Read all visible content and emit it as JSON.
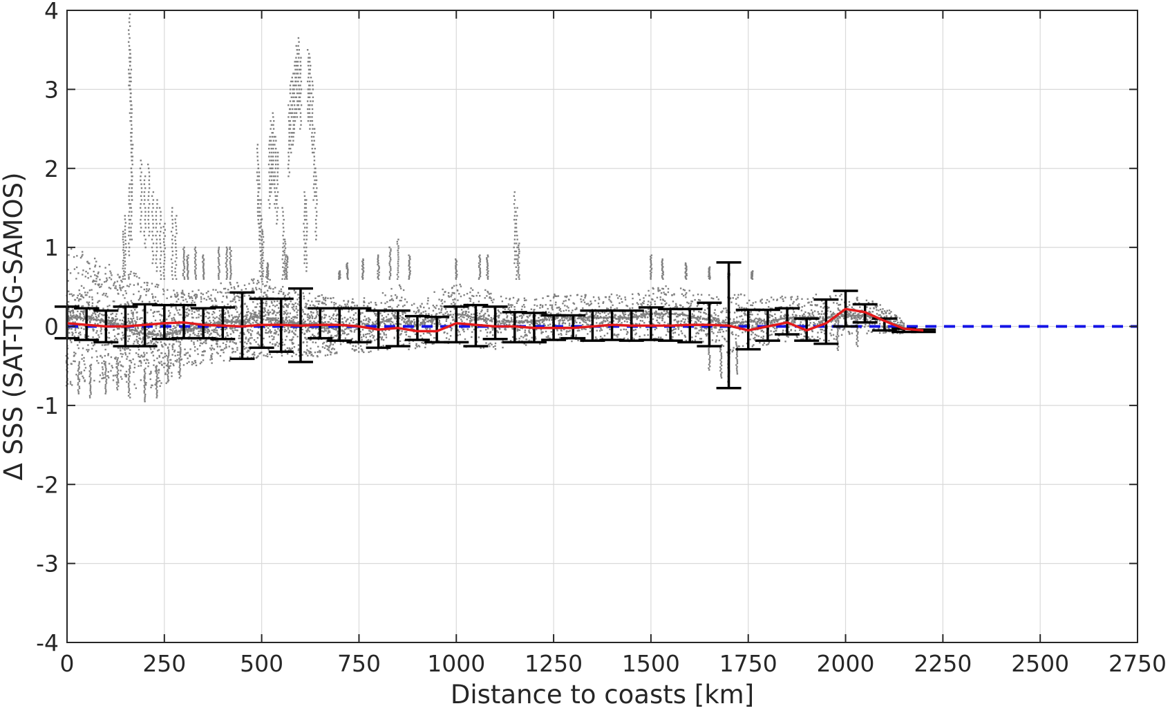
{
  "chart_data": {
    "type": "scatter",
    "title": "",
    "xlabel": "Distance to coasts [km]",
    "ylabel": "Δ SSS (SAT-TSG-SAMOS)",
    "xlim": [
      0,
      2750
    ],
    "ylim": [
      -4,
      4
    ],
    "xticks": [
      0,
      250,
      500,
      750,
      1000,
      1250,
      1500,
      1750,
      2000,
      2250,
      2500,
      2750
    ],
    "yticks": [
      -4,
      -3,
      -2,
      -1,
      0,
      1,
      2,
      3,
      4
    ],
    "grid": true,
    "colors": {
      "scatter": "#808080",
      "error_bars": "#000000",
      "mean_line": "#e31a1c",
      "zero_line": "#1414e6"
    },
    "zero_line": {
      "y": 0,
      "x_range": [
        0,
        2750
      ],
      "style": "dashed"
    },
    "scatter_envelope": {
      "x": [
        0,
        50,
        100,
        150,
        200,
        250,
        300,
        350,
        400,
        450,
        500,
        550,
        600,
        650,
        700,
        750,
        800,
        850,
        900,
        950,
        1000,
        1050,
        1100,
        1150,
        1200,
        1250,
        1300,
        1350,
        1400,
        1450,
        1500,
        1550,
        1600,
        1650,
        1700,
        1750,
        1800,
        1850,
        1900,
        1950,
        2000,
        2050,
        2100,
        2150
      ],
      "low": [
        -0.75,
        -0.7,
        -0.65,
        -0.7,
        -0.8,
        -0.7,
        -0.5,
        -0.45,
        -0.4,
        -0.4,
        -0.35,
        -0.35,
        -0.35,
        -0.35,
        -0.3,
        -0.3,
        -0.3,
        -0.25,
        -0.25,
        -0.2,
        -0.2,
        -0.25,
        -0.25,
        -0.2,
        -0.2,
        -0.15,
        -0.15,
        -0.15,
        -0.15,
        -0.15,
        -0.15,
        -0.15,
        -0.15,
        -0.2,
        -0.3,
        -0.25,
        -0.2,
        -0.15,
        -0.15,
        -0.15,
        -0.1,
        -0.05,
        -0.05,
        -0.05
      ],
      "high": [
        1.05,
        1.0,
        0.85,
        0.75,
        0.7,
        0.55,
        0.5,
        0.5,
        0.6,
        0.6,
        0.7,
        0.55,
        0.5,
        0.45,
        0.4,
        0.4,
        0.45,
        0.6,
        0.35,
        0.5,
        0.6,
        0.55,
        0.45,
        0.4,
        0.4,
        0.45,
        0.45,
        0.45,
        0.45,
        0.45,
        0.55,
        0.55,
        0.5,
        0.45,
        0.45,
        0.45,
        0.4,
        0.45,
        0.45,
        0.45,
        0.45,
        0.4,
        0.3,
        0.1
      ]
    },
    "scatter_outliers": [
      [
        160,
        3.95
      ],
      [
        163,
        3.5
      ],
      [
        165,
        3.0
      ],
      [
        167,
        2.5
      ],
      [
        165,
        2.0
      ],
      [
        160,
        1.8
      ],
      [
        150,
        1.4
      ],
      [
        145,
        1.2
      ],
      [
        190,
        2.1
      ],
      [
        200,
        1.9
      ],
      [
        210,
        2.05
      ],
      [
        220,
        1.7
      ],
      [
        230,
        1.6
      ],
      [
        240,
        1.5
      ],
      [
        250,
        1.3
      ],
      [
        270,
        1.5
      ],
      [
        280,
        1.4
      ],
      [
        300,
        1.0
      ],
      [
        310,
        0.9
      ],
      [
        330,
        1.0
      ],
      [
        350,
        0.9
      ],
      [
        390,
        1.0
      ],
      [
        410,
        1.0
      ],
      [
        420,
        1.0
      ],
      [
        490,
        2.3
      ],
      [
        493,
        2.0
      ],
      [
        497,
        1.6
      ],
      [
        500,
        1.4
      ],
      [
        503,
        1.2
      ],
      [
        515,
        0.8
      ],
      [
        520,
        2.4
      ],
      [
        525,
        2.6
      ],
      [
        530,
        2.7
      ],
      [
        535,
        2.4
      ],
      [
        540,
        2.2
      ],
      [
        555,
        1.5
      ],
      [
        560,
        1.1
      ],
      [
        565,
        0.9
      ],
      [
        570,
        2.8
      ],
      [
        575,
        3.1
      ],
      [
        580,
        3.2
      ],
      [
        585,
        3.35
      ],
      [
        590,
        3.55
      ],
      [
        595,
        3.65
      ],
      [
        600,
        3.4
      ],
      [
        610,
        1.7
      ],
      [
        615,
        1.6
      ],
      [
        620,
        3.5
      ],
      [
        625,
        3.4
      ],
      [
        630,
        3.1
      ],
      [
        635,
        2.5
      ],
      [
        640,
        2.0
      ],
      [
        700,
        0.7
      ],
      [
        720,
        0.8
      ],
      [
        760,
        0.85
      ],
      [
        800,
        0.9
      ],
      [
        830,
        1.0
      ],
      [
        850,
        1.1
      ],
      [
        880,
        0.9
      ],
      [
        1000,
        0.85
      ],
      [
        1060,
        0.9
      ],
      [
        1080,
        0.9
      ],
      [
        1150,
        1.7
      ],
      [
        1155,
        1.5
      ],
      [
        1160,
        1.05
      ],
      [
        1500,
        0.9
      ],
      [
        1530,
        0.85
      ],
      [
        1590,
        0.8
      ],
      [
        1650,
        0.75
      ],
      [
        1700,
        0.7
      ],
      [
        1760,
        0.7
      ],
      [
        0,
        -0.75
      ],
      [
        30,
        -0.85
      ],
      [
        60,
        -0.9
      ],
      [
        100,
        -0.85
      ],
      [
        130,
        -0.8
      ],
      [
        160,
        -0.9
      ],
      [
        200,
        -0.95
      ],
      [
        230,
        -0.9
      ],
      [
        260,
        -0.7
      ],
      [
        290,
        -0.65
      ],
      [
        1650,
        -0.55
      ],
      [
        1680,
        -0.65
      ],
      [
        1700,
        -0.7
      ],
      [
        1720,
        -0.6
      ],
      [
        1980,
        -0.3
      ],
      [
        2030,
        -0.25
      ]
    ],
    "series": [
      {
        "type": "errorbar",
        "x": [
          0,
          50,
          100,
          150,
          200,
          250,
          300,
          350,
          400,
          450,
          500,
          550,
          600,
          650,
          700,
          750,
          800,
          850,
          900,
          950,
          1000,
          1050,
          1100,
          1150,
          1200,
          1250,
          1300,
          1350,
          1400,
          1450,
          1500,
          1550,
          1600,
          1650,
          1700,
          1750,
          1800,
          1850,
          1900,
          1950,
          2000,
          2050,
          2100,
          2150,
          2200
        ],
        "y": [
          0.04,
          0.02,
          0.0,
          0.0,
          0.02,
          0.04,
          0.05,
          0.02,
          0.01,
          0.0,
          0.02,
          0.02,
          0.01,
          0.02,
          0.02,
          0.0,
          -0.04,
          -0.02,
          -0.06,
          -0.06,
          0.04,
          0.02,
          0.0,
          0.0,
          -0.02,
          -0.02,
          -0.02,
          0.0,
          0.02,
          0.01,
          0.01,
          0.01,
          0.02,
          0.02,
          0.01,
          -0.05,
          0.0,
          0.05,
          -0.05,
          0.04,
          0.22,
          0.18,
          0.07,
          -0.03,
          -0.05
        ],
        "low": [
          -0.15,
          -0.17,
          -0.2,
          -0.25,
          -0.25,
          -0.16,
          -0.15,
          -0.15,
          -0.16,
          -0.41,
          -0.27,
          -0.32,
          -0.45,
          -0.15,
          -0.18,
          -0.2,
          -0.27,
          -0.25,
          -0.17,
          -0.2,
          -0.2,
          -0.25,
          -0.16,
          -0.2,
          -0.2,
          -0.17,
          -0.15,
          -0.18,
          -0.17,
          -0.18,
          -0.17,
          -0.18,
          -0.2,
          -0.25,
          -0.78,
          -0.29,
          -0.18,
          -0.1,
          -0.18,
          -0.22,
          0.0,
          0.05,
          -0.05,
          -0.07,
          -0.07
        ],
        "high": [
          0.25,
          0.23,
          0.2,
          0.25,
          0.28,
          0.27,
          0.27,
          0.23,
          0.24,
          0.43,
          0.35,
          0.35,
          0.48,
          0.23,
          0.23,
          0.23,
          0.2,
          0.2,
          0.13,
          0.12,
          0.25,
          0.27,
          0.25,
          0.18,
          0.17,
          0.14,
          0.14,
          0.2,
          0.2,
          0.2,
          0.24,
          0.22,
          0.22,
          0.3,
          0.81,
          0.21,
          0.21,
          0.23,
          0.1,
          0.34,
          0.45,
          0.28,
          0.1,
          -0.03,
          -0.04
        ]
      },
      {
        "type": "line",
        "x": [
          0,
          50,
          100,
          150,
          200,
          250,
          300,
          350,
          400,
          450,
          500,
          550,
          600,
          650,
          700,
          750,
          800,
          850,
          900,
          950,
          1000,
          1050,
          1100,
          1150,
          1200,
          1250,
          1300,
          1350,
          1400,
          1450,
          1500,
          1550,
          1600,
          1650,
          1700,
          1750,
          1800,
          1850,
          1900,
          1950,
          2000,
          2050,
          2100,
          2150,
          2200
        ],
        "y": [
          0.04,
          0.02,
          0.0,
          0.0,
          0.02,
          0.04,
          0.05,
          0.02,
          0.01,
          0.0,
          0.02,
          0.02,
          0.01,
          0.02,
          0.02,
          0.0,
          -0.04,
          -0.02,
          -0.06,
          -0.06,
          0.04,
          0.02,
          0.0,
          0.0,
          -0.02,
          -0.02,
          -0.02,
          0.0,
          0.02,
          0.01,
          0.01,
          0.01,
          0.02,
          0.02,
          0.01,
          -0.05,
          0.0,
          0.05,
          -0.05,
          0.04,
          0.22,
          0.18,
          0.07,
          -0.03,
          -0.05
        ]
      }
    ]
  }
}
